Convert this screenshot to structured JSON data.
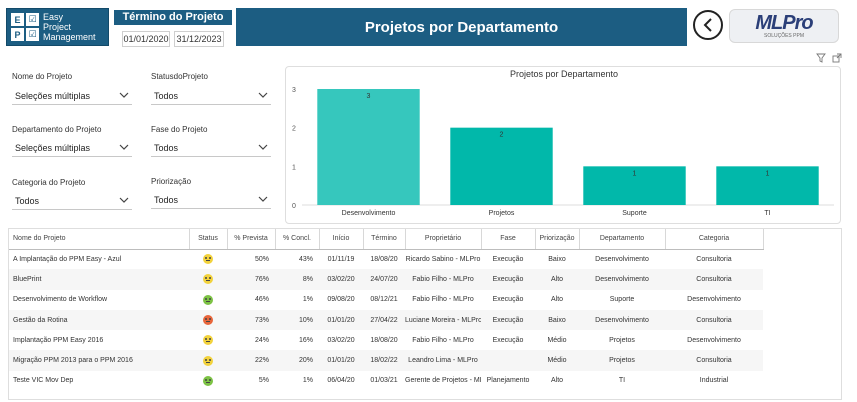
{
  "header": {
    "logo_letters": [
      "E",
      "",
      "P",
      ""
    ],
    "logo_lines": [
      "Easy",
      "Project",
      "Management"
    ],
    "period_title": "Término do Projeto",
    "date_start": "01/01/2020",
    "date_end": "31/12/2023",
    "banner_title": "Projetos por Departamento",
    "brand": "MLPro",
    "brand_sub": "SOLUÇÕES PPM"
  },
  "slicers": [
    {
      "label": "Nome do Projeto",
      "value": "Seleções múltiplas"
    },
    {
      "label": "StatusdoProjeto",
      "value": "Todos"
    },
    {
      "label": "Departamento do Projeto",
      "value": "Seleções múltiplas"
    },
    {
      "label": "Fase do Projeto",
      "value": "Todos"
    },
    {
      "label": "Categoria do Projeto",
      "value": "Todos"
    },
    {
      "label": "Priorização",
      "value": "Todos"
    }
  ],
  "chart_data": {
    "type": "bar",
    "title": "Projetos por Departamento",
    "categories": [
      "Desenvolvimento",
      "Projetos",
      "Suporte",
      "TI"
    ],
    "values": [
      3,
      2,
      1,
      1
    ],
    "ylim": [
      0,
      3
    ],
    "yticks": [
      0,
      1,
      2,
      3
    ],
    "grid": false,
    "colors": [
      "#36c7bd",
      "#01b8aa",
      "#01b8aa",
      "#01b8aa"
    ]
  },
  "table": {
    "columns": [
      "Nome do Projeto",
      "Status",
      "% Prevista",
      "% Concl.",
      "Início",
      "Término",
      "Proprietário",
      "Fase",
      "Priorização",
      "Departamento",
      "Categoria"
    ],
    "rows": [
      {
        "nome": "A Implantação do PPM Easy - Azul",
        "status": "yellow",
        "prevista": "50%",
        "concl": "43%",
        "inicio": "01/11/19",
        "termino": "18/08/20",
        "proprietario": "Ricardo Sabino - MLPro",
        "fase": "Execução",
        "prioridade": "Baixo",
        "departamento": "Desenvolvimento",
        "categoria": "Consultoria"
      },
      {
        "nome": "BluePrint",
        "status": "yellow",
        "prevista": "76%",
        "concl": "8%",
        "inicio": "03/02/20",
        "termino": "24/07/20",
        "proprietario": "Fabio Filho - MLPro",
        "fase": "Execução",
        "prioridade": "Alto",
        "departamento": "Desenvolvimento",
        "categoria": "Consultoria"
      },
      {
        "nome": "Desenvolvimento de Workflow",
        "status": "green",
        "prevista": "46%",
        "concl": "1%",
        "inicio": "09/08/20",
        "termino": "08/12/21",
        "proprietario": "Fabio Filho - MLPro",
        "fase": "Execução",
        "prioridade": "Alto",
        "departamento": "Suporte",
        "categoria": "Desenvolvimento"
      },
      {
        "nome": "Gestão da Rotina",
        "status": "red",
        "prevista": "73%",
        "concl": "10%",
        "inicio": "01/01/20",
        "termino": "27/04/22",
        "proprietario": "Luciane Moreira - MLPro",
        "fase": "Execução",
        "prioridade": "Baixo",
        "departamento": "Desenvolvimento",
        "categoria": "Consultoria"
      },
      {
        "nome": "Implantação PPM Easy 2016",
        "status": "yellow",
        "prevista": "24%",
        "concl": "16%",
        "inicio": "03/02/20",
        "termino": "18/08/20",
        "proprietario": "Fabio Filho - MLPro",
        "fase": "Execução",
        "prioridade": "Médio",
        "departamento": "Projetos",
        "categoria": "Desenvolvimento"
      },
      {
        "nome": "Migração PPM 2013 para o PPM 2016",
        "status": "yellow",
        "prevista": "22%",
        "concl": "20%",
        "inicio": "01/01/20",
        "termino": "18/02/22",
        "proprietario": "Leandro Lima - MLPro",
        "fase": "",
        "prioridade": "Médio",
        "departamento": "Projetos",
        "categoria": "Consultoria"
      },
      {
        "nome": "Teste VIC Mov Dep",
        "status": "green",
        "prevista": "5%",
        "concl": "1%",
        "inicio": "06/04/20",
        "termino": "01/03/21",
        "proprietario": "Gerente de Projetos - MLPro",
        "fase": "Planejamento",
        "prioridade": "Alto",
        "departamento": "TI",
        "categoria": "Industrial"
      }
    ]
  },
  "status_colors": {
    "yellow": "#f2d23c",
    "green": "#7cc244",
    "red": "#e8653a"
  }
}
